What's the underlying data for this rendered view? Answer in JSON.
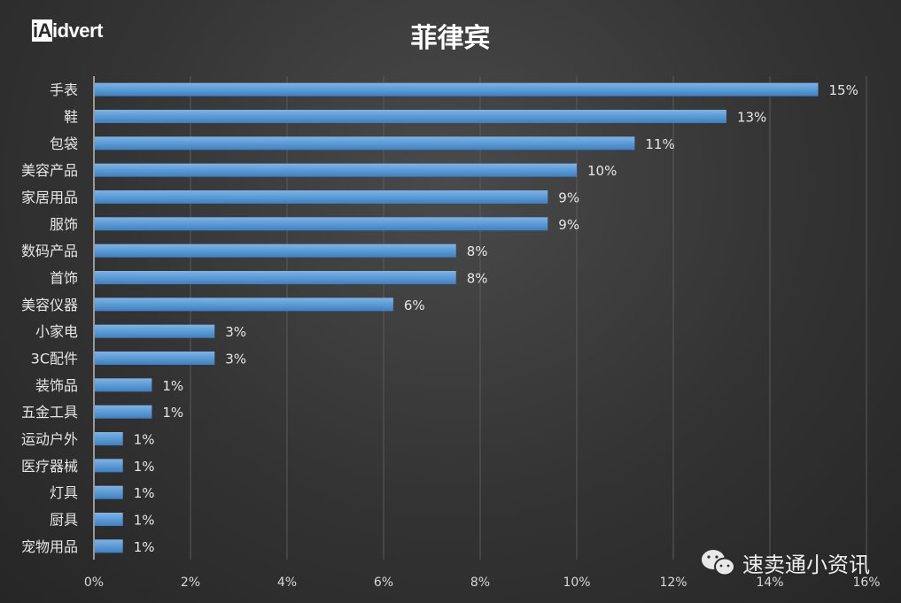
{
  "chart_data": {
    "type": "bar",
    "orientation": "horizontal",
    "title": "菲律宾",
    "categories": [
      "手表",
      "鞋",
      "包袋",
      "美容产品",
      "家居用品",
      "服饰",
      "数码产品",
      "首饰",
      "美容仪器",
      "小家电",
      "3C配件",
      "装饰品",
      "五金工具",
      "运动户外",
      "医疗器械",
      "灯具",
      "厨具",
      "宠物用品"
    ],
    "values": [
      15.0,
      13.1,
      11.2,
      10.0,
      9.4,
      9.4,
      7.5,
      7.5,
      6.2,
      2.5,
      2.5,
      1.2,
      1.2,
      0.6,
      0.6,
      0.6,
      0.6,
      0.6
    ],
    "data_labels": [
      "15%",
      "13%",
      "11%",
      "10%",
      "9%",
      "9%",
      "8%",
      "8%",
      "6%",
      "3%",
      "3%",
      "1%",
      "1%",
      "1%",
      "1%",
      "1%",
      "1%",
      "1%"
    ],
    "xlim": [
      0,
      16
    ],
    "xticks": [
      "0%",
      "2%",
      "4%",
      "6%",
      "8%",
      "10%",
      "12%",
      "14%",
      "16%"
    ],
    "grid": "vertical",
    "bar_color": "#5b9bd5",
    "xlabel": "",
    "ylabel": ""
  },
  "logo": {
    "prefix": "iA",
    "suffix": "idvert"
  },
  "watermark": {
    "text": "速卖通小资讯",
    "icon": "wechat-icon"
  }
}
